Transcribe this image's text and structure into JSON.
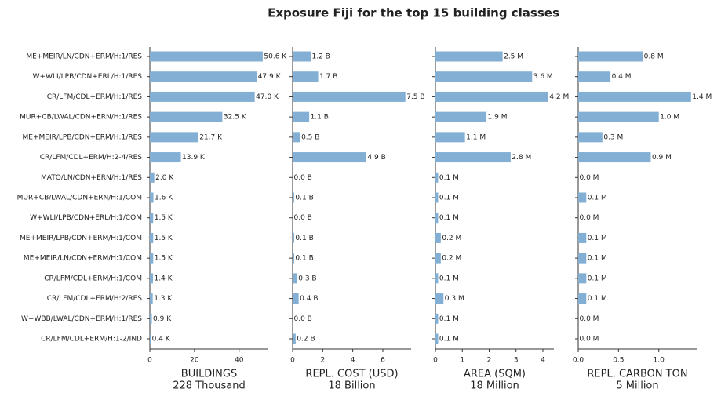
{
  "title": "Exposure Fiji for the top 15 building classes",
  "chart_data": [
    {
      "type": "barh",
      "color": "#82afd3",
      "categories": [
        "ME+MEIR/LN/CDN+ERM/H:1/RES",
        "W+WLI/LPB/CDN+ERL/H:1/RES",
        "CR/LFM/CDL+ERM/H:1/RES",
        "MUR+CB/LWAL/CDN+ERN/H:1/RES",
        "ME+MEIR/LPB/CDN+ERM/H:1/RES",
        "CR/LFM/CDL+ERM/H:2-4/RES",
        "MATO/LN/CDN+ERN/H:1/RES",
        "MUR+CB/LWAL/CDN+ERN/H:1/COM",
        "W+WLI/LPB/CDN+ERL/H:1/COM",
        "ME+MEIR/LPB/CDN+ERM/H:1/COM",
        "ME+MEIR/LN/CDN+ERM/H:1/COM",
        "CR/LFM/CDL+ERM/H:1/COM",
        "CR/LFM/CDL+ERM/H:2/RES",
        "W+WBB/LWAL/CDN+ERM/H:1/RES",
        "CR/LFM/CDL+ERM/H:1-2/IND"
      ],
      "values": [
        50.6,
        47.9,
        47.0,
        32.5,
        21.7,
        13.9,
        2.0,
        1.6,
        1.5,
        1.5,
        1.5,
        1.4,
        1.3,
        0.9,
        0.4
      ],
      "value_labels": [
        "50.6 K",
        "47.9 K",
        "47.0 K",
        "32.5 K",
        "21.7 K",
        "13.9 K",
        "2.0 K",
        "1.6 K",
        "1.5 K",
        "1.5 K",
        "1.5 K",
        "1.4 K",
        "1.3 K",
        "0.9 K",
        "0.4 K"
      ],
      "xlim": [
        0,
        53.1
      ],
      "xticks": [
        0,
        20,
        40
      ],
      "xlabel": "BUILDINGS",
      "xlabel_total": "228 Thousand"
    },
    {
      "type": "barh",
      "color": "#82afd3",
      "values": [
        1.2,
        1.7,
        7.5,
        1.1,
        0.5,
        4.9,
        0.0,
        0.1,
        0.0,
        0.1,
        0.1,
        0.3,
        0.4,
        0.0,
        0.2
      ],
      "value_labels": [
        "1.2 B",
        "1.7 B",
        "7.5 B",
        "1.1 B",
        "0.5 B",
        "4.9 B",
        "0.0 B",
        "0.1 B",
        "0.0 B",
        "0.1 B",
        "0.1 B",
        "0.3 B",
        "0.4 B",
        "0.0 B",
        "0.2 B"
      ],
      "xlim": [
        0,
        7.88
      ],
      "xticks": [
        0,
        2,
        4,
        6
      ],
      "xlabel": "REPL. COST (USD)",
      "xlabel_total": "18 Billion"
    },
    {
      "type": "barh",
      "color": "#82afd3",
      "values": [
        2.5,
        3.6,
        4.2,
        1.9,
        1.1,
        2.8,
        0.1,
        0.1,
        0.1,
        0.2,
        0.2,
        0.1,
        0.3,
        0.1,
        0.1
      ],
      "value_labels": [
        "2.5 M",
        "3.6 M",
        "4.2 M",
        "1.9 M",
        "1.1 M",
        "2.8 M",
        "0.1 M",
        "0.1 M",
        "0.1 M",
        "0.2 M",
        "0.2 M",
        "0.1 M",
        "0.3 M",
        "0.1 M",
        "0.1 M"
      ],
      "xlim": [
        0,
        4.41
      ],
      "xticks": [
        0,
        1,
        2,
        3,
        4
      ],
      "xlabel": "AREA (SQM)",
      "xlabel_total": "18 Million"
    },
    {
      "type": "barh",
      "color": "#82afd3",
      "values": [
        0.8,
        0.4,
        1.4,
        1.0,
        0.3,
        0.9,
        0.0,
        0.1,
        0.0,
        0.1,
        0.1,
        0.1,
        0.1,
        0.0,
        0.0
      ],
      "value_labels": [
        "0.8 M",
        "0.4 M",
        "1.4 M",
        "1.0 M",
        "0.3 M",
        "0.9 M",
        "0.0 M",
        "0.1 M",
        "0.0 M",
        "0.1 M",
        "0.1 M",
        "0.1 M",
        "0.1 M",
        "0.0 M",
        "0.0 M"
      ],
      "xlim": [
        0,
        1.47
      ],
      "xticks": [
        {
          "value": 0,
          "label": "0.0"
        },
        0.5,
        {
          "value": 1,
          "label": "1.0"
        }
      ],
      "xlabel": "REPL. CARBON TON",
      "xlabel_total": "5 Million"
    }
  ]
}
